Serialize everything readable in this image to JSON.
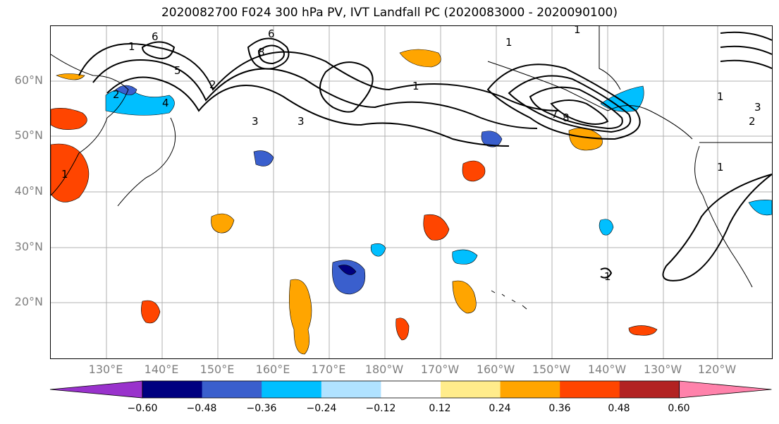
{
  "title": "2020082700 F024 300 hPa PV, IVT Landfall PC (2020083000 - 2020090100)",
  "lat_labels": [
    "60°N",
    "50°N",
    "40°N",
    "30°N",
    "20°N"
  ],
  "lon_labels": [
    "130°E",
    "140°E",
    "150°E",
    "160°E",
    "170°E",
    "180°W",
    "170°W",
    "160°W",
    "150°W",
    "140°W",
    "130°W",
    "120°W"
  ],
  "contour_labels": [
    "6",
    "1",
    "5",
    "6",
    "8",
    "2",
    "3",
    "4",
    "3",
    "2",
    "1",
    "1",
    "1",
    "7",
    "8",
    "1",
    "1",
    "3",
    "2",
    "1",
    "1"
  ],
  "colorbar": {
    "ticks": [
      "−0.60",
      "−0.48",
      "−0.36",
      "−0.24",
      "−0.12",
      "0.12",
      "0.24",
      "0.36",
      "0.48",
      "0.60"
    ],
    "colors": [
      "#9932cc",
      "#000080",
      "#3a5fcd",
      "#00bfff",
      "#b0e2ff",
      "#ffffff",
      "#ffec8b",
      "#ffa500",
      "#ff4500",
      "#b22222",
      "#ff82ab"
    ]
  }
}
